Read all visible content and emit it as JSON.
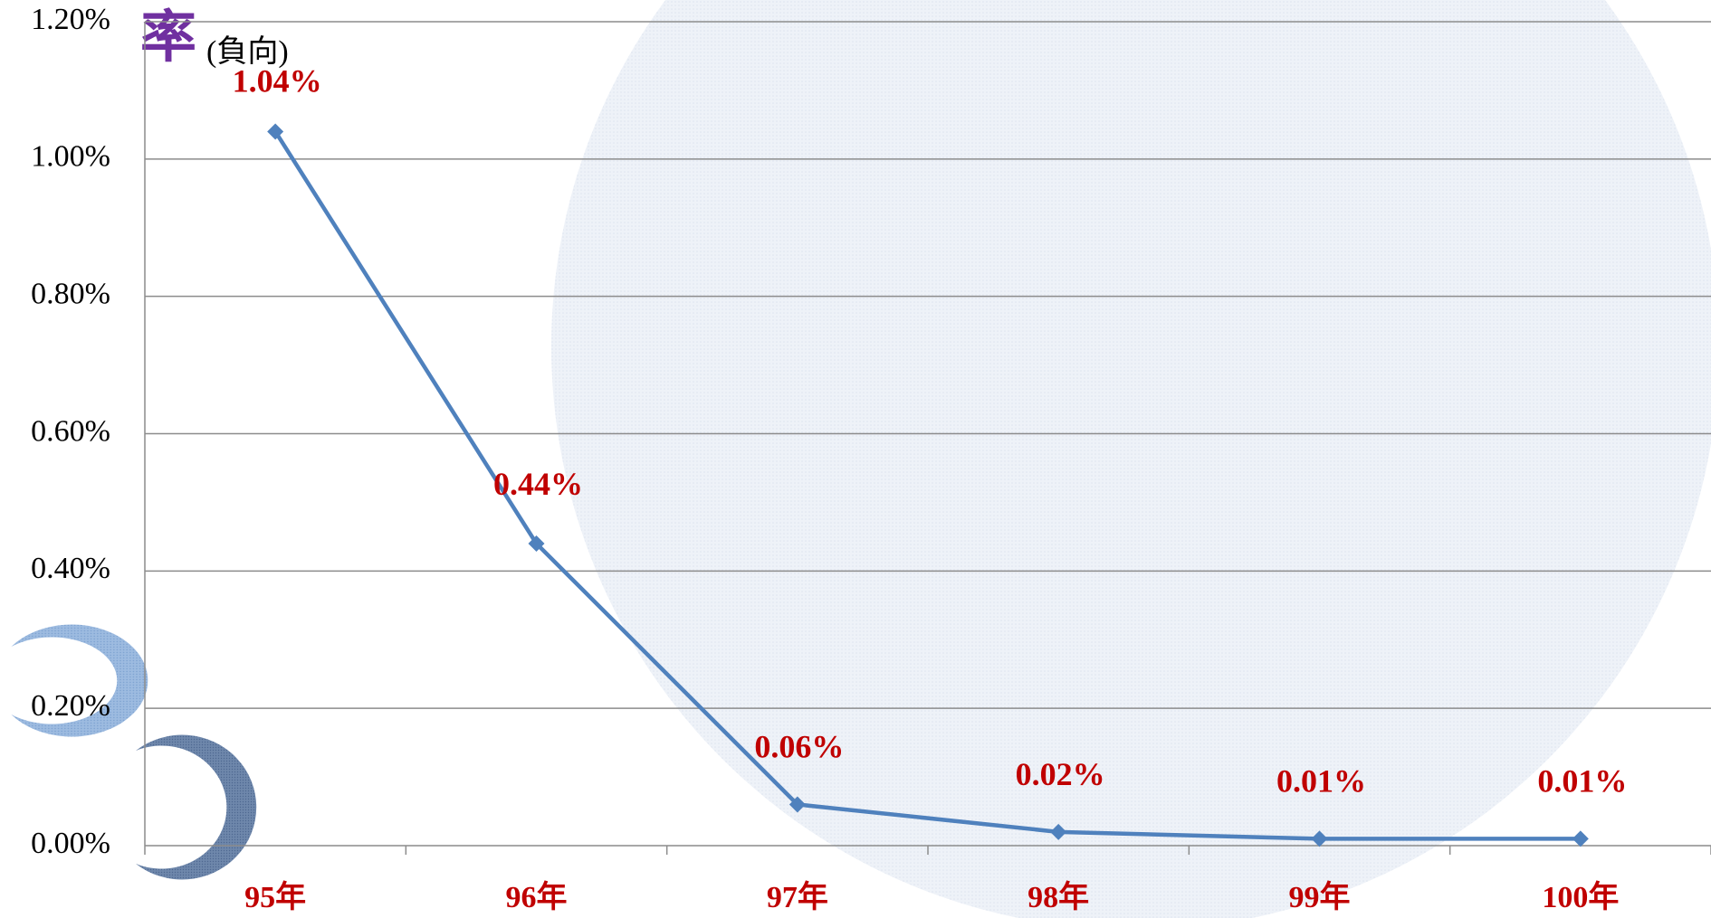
{
  "chart_data": {
    "type": "line",
    "title": "率",
    "subtitle": "(負向)",
    "categories": [
      "95年",
      "96年",
      "97年",
      "98年",
      "99年",
      "100年"
    ],
    "series": [
      {
        "name": null,
        "color": "#4f81bd",
        "values": [
          1.04,
          0.44,
          0.06,
          0.02,
          0.01,
          0.01
        ],
        "value_labels": [
          "1.04%",
          "0.44%",
          "0.06%",
          "0.02%",
          "0.01%",
          "0.01%"
        ]
      }
    ],
    "ylim": [
      0,
      1.2
    ],
    "yticks": [
      {
        "value": 0,
        "label": "0.00%"
      },
      {
        "value": 0.2,
        "label": "0.20%"
      },
      {
        "value": 0.4,
        "label": "0.40%"
      },
      {
        "value": 0.6,
        "label": "0.60%"
      },
      {
        "value": 0.8,
        "label": "0.80%"
      },
      {
        "value": 1.0,
        "label": "1.00%"
      },
      {
        "value": 1.2,
        "label": "1.20%"
      }
    ],
    "grid": true
  }
}
